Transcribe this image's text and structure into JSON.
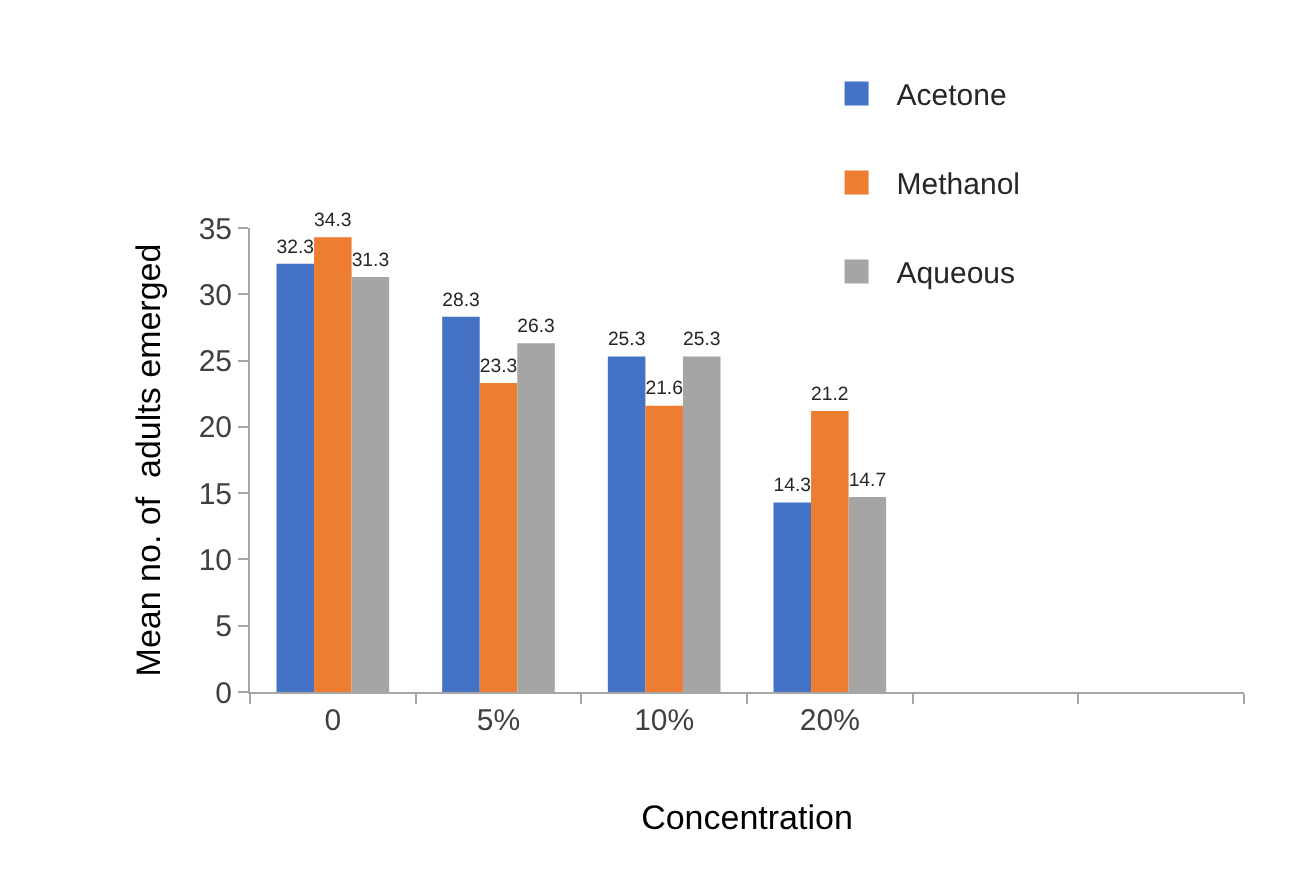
{
  "chart_data": {
    "type": "bar",
    "xlabel": "Concentration",
    "ylabel": "Mean no. of  adults emerged",
    "categories": [
      "0",
      "5%",
      "10%",
      "20%",
      null,
      null
    ],
    "series": [
      {
        "name": "Acetone",
        "color": "#4472c4",
        "values": [
          32.3,
          28.3,
          25.3,
          14.3,
          null,
          null
        ]
      },
      {
        "name": "Methanol",
        "color": "#ed7d31",
        "values": [
          34.3,
          23.3,
          21.6,
          21.2,
          null,
          null
        ]
      },
      {
        "name": "Aqueous",
        "color": "#a5a5a5",
        "values": [
          31.3,
          26.3,
          25.3,
          14.7,
          null,
          null
        ]
      }
    ],
    "ylim": [
      0,
      35
    ],
    "yticks": [
      0,
      5,
      10,
      15,
      20,
      25,
      30,
      35
    ],
    "data_labels": true,
    "grid": false,
    "legend": "top right"
  }
}
